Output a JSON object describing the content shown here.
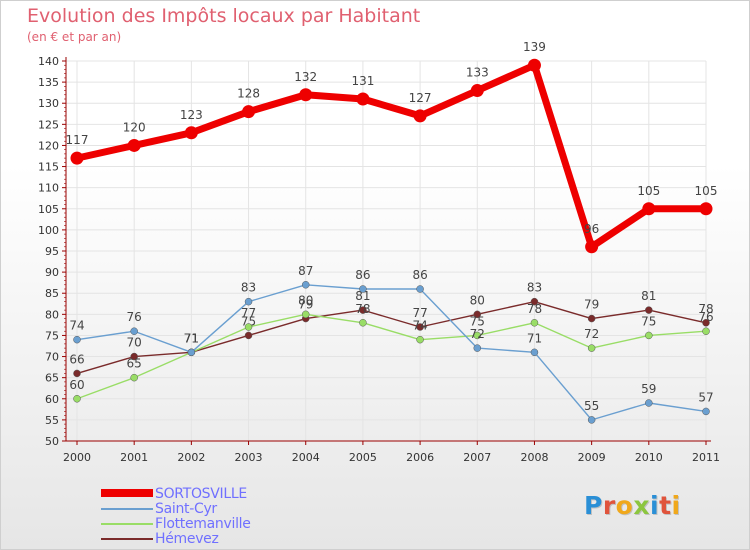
{
  "title": "Evolution des Impôts locaux par Habitant",
  "subtitle": "(en € et par an)",
  "brand": {
    "letters": [
      "P",
      "r",
      "o",
      "x",
      "i",
      "t",
      "i"
    ],
    "colors": [
      "#2a8fd6",
      "#e0543c",
      "#f0a81c",
      "#8cc63f",
      "#2a8fd6",
      "#e0543c",
      "#f0a81c"
    ]
  },
  "chart_data": {
    "type": "line",
    "title": "Evolution des Impôts locaux par Habitant",
    "ylabel": "(en € et par an)",
    "xlabel": "",
    "ylim": [
      50,
      140
    ],
    "y_ticks": [
      "50",
      "55",
      "60",
      "65",
      "70",
      "75",
      "80",
      "85",
      "90",
      "95",
      "100",
      "105",
      "110",
      "115",
      "120",
      "125",
      "130",
      "135",
      "140"
    ],
    "categories": [
      "2000",
      "2001",
      "2002",
      "2003",
      "2004",
      "2005",
      "2006",
      "2007",
      "2008",
      "2009",
      "2010",
      "2011"
    ],
    "grid": true,
    "legend": "bottom-left",
    "series": [
      {
        "name": "SORTOSVILLE",
        "color": "#ee0000",
        "values": [
          117,
          120,
          123,
          128,
          132,
          131,
          127,
          133,
          139,
          96,
          105,
          105
        ],
        "labels": [
          "117",
          "120",
          "123",
          "128",
          "132",
          "131",
          "127",
          "133",
          "139",
          "96",
          "105",
          "105"
        ]
      },
      {
        "name": "Saint-Cyr",
        "color": "#6a9fd0",
        "values": [
          74,
          76,
          71,
          83,
          87,
          86,
          86,
          72,
          71,
          55,
          59,
          57
        ],
        "labels": [
          "74",
          "76",
          "71",
          "83",
          "87",
          "86",
          "86",
          "72",
          "71",
          "55",
          "59",
          "57"
        ]
      },
      {
        "name": "Flottemanville",
        "color": "#99dd66",
        "values": [
          60,
          65,
          71,
          77,
          80,
          78,
          74,
          75,
          78,
          72,
          75,
          76
        ],
        "labels": [
          "60",
          "65",
          "71",
          "77",
          "80",
          "78",
          "74",
          "75",
          "78",
          "72",
          "75",
          "76"
        ]
      },
      {
        "name": "Hémevez",
        "color": "#7a2b2b",
        "values": [
          66,
          70,
          71,
          75,
          79,
          81,
          77,
          80,
          83,
          79,
          81,
          78
        ],
        "labels": [
          "66",
          "70",
          "71",
          "75",
          "79",
          "81",
          "77",
          "80",
          "83",
          "79",
          "81",
          "78"
        ]
      }
    ]
  }
}
